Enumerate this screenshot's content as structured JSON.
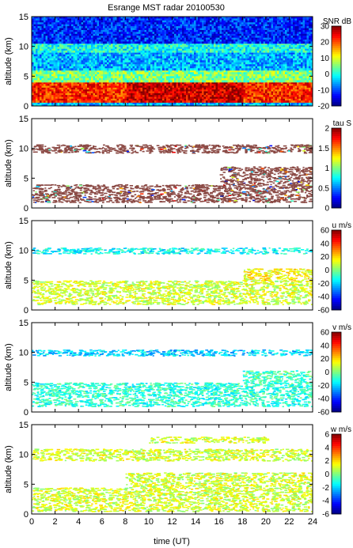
{
  "title": "Esrange MST radar 20100530",
  "xlabel": "time (UT)",
  "x_ticks": [
    0,
    2,
    4,
    6,
    8,
    10,
    12,
    14,
    16,
    18,
    20,
    22,
    24
  ],
  "xlim": [
    0,
    24
  ],
  "colors": {
    "background_missing": "#ffffff",
    "colormap": [
      "#00007f",
      "#0000ff",
      "#007fff",
      "#00ffff",
      "#7fff7f",
      "#ffff00",
      "#ff7f00",
      "#ff0000",
      "#7f0000"
    ]
  },
  "chart_data": [
    {
      "type": "heatmap",
      "name": "snr",
      "ylabel": "altitude (km)",
      "ylim": [
        0,
        15
      ],
      "y_ticks": [
        0,
        5,
        10,
        15
      ],
      "colorbar": {
        "label": "SNR dB",
        "range": [
          -20,
          30
        ],
        "ticks": [
          30,
          20,
          10,
          0,
          -10,
          -20
        ]
      },
      "layers": [
        {
          "alt_km": [
            0.0,
            0.6
          ],
          "value_db": -5
        },
        {
          "alt_km": [
            0.6,
            4.0
          ],
          "value_db": 22
        },
        {
          "alt_km": [
            4.0,
            6.0
          ],
          "value_db": 5
        },
        {
          "alt_km": [
            6.0,
            9.0
          ],
          "value_db": -5
        },
        {
          "alt_km": [
            9.0,
            10.5
          ],
          "value_db": 0
        },
        {
          "alt_km": [
            10.5,
            15.0
          ],
          "value_db": -12
        }
      ]
    },
    {
      "type": "heatmap",
      "name": "tau",
      "ylabel": "altitude (km)",
      "ylim": [
        0,
        15
      ],
      "y_ticks": [
        0,
        5,
        10,
        15
      ],
      "colorbar": {
        "label": "tau S",
        "range": [
          0,
          2
        ],
        "ticks": [
          2,
          1.5,
          1,
          0.5,
          0
        ]
      },
      "echo_bands": [
        {
          "alt_km": [
            1.0,
            4.0
          ],
          "value": 2.0,
          "time_ut": [
            0,
            24
          ]
        },
        {
          "alt_km": [
            4.0,
            7.0
          ],
          "value": 2.0,
          "time_ut": [
            16,
            24
          ]
        },
        {
          "alt_km": [
            9.3,
            10.7
          ],
          "value": 2.0,
          "time_ut": [
            0,
            24
          ]
        }
      ]
    },
    {
      "type": "heatmap",
      "name": "u",
      "ylabel": "altitude (km)",
      "ylim": [
        0,
        15
      ],
      "y_ticks": [
        0,
        5,
        10,
        15
      ],
      "colorbar": {
        "label": "u m/s",
        "range": [
          -60,
          60
        ],
        "ticks": [
          60,
          40,
          20,
          0,
          -20,
          -40,
          -60
        ]
      },
      "echo_bands": [
        {
          "alt_km": [
            1.0,
            5.0
          ],
          "value": 10,
          "time_ut": [
            0,
            24
          ]
        },
        {
          "alt_km": [
            5.0,
            7.0
          ],
          "value": 15,
          "time_ut": [
            18,
            24
          ]
        },
        {
          "alt_km": [
            9.5,
            10.5
          ],
          "value": -15,
          "time_ut": [
            0,
            24
          ]
        }
      ]
    },
    {
      "type": "heatmap",
      "name": "v",
      "ylabel": "altitude (km)",
      "ylim": [
        0,
        15
      ],
      "y_ticks": [
        0,
        5,
        10,
        15
      ],
      "colorbar": {
        "label": "v m/s",
        "range": [
          -60,
          60
        ],
        "ticks": [
          60,
          40,
          20,
          0,
          -20,
          -40,
          -60
        ]
      },
      "echo_bands": [
        {
          "alt_km": [
            1.0,
            5.0
          ],
          "value": -10,
          "time_ut": [
            0,
            24
          ]
        },
        {
          "alt_km": [
            5.0,
            7.0
          ],
          "value": -8,
          "time_ut": [
            18,
            24
          ]
        },
        {
          "alt_km": [
            9.5,
            10.5
          ],
          "value": -20,
          "time_ut": [
            0,
            24
          ]
        }
      ]
    },
    {
      "type": "heatmap",
      "name": "w",
      "ylabel": "altitude (km)",
      "ylim": [
        0,
        15
      ],
      "y_ticks": [
        0,
        5,
        10,
        15
      ],
      "colorbar": {
        "label": "w m/s",
        "range": [
          -6,
          6
        ],
        "ticks": [
          6,
          4,
          2,
          0,
          -2,
          -4,
          -6
        ]
      },
      "echo_bands": [
        {
          "alt_km": [
            0.5,
            4.5
          ],
          "value": 1,
          "time_ut": [
            0,
            24
          ]
        },
        {
          "alt_km": [
            4.5,
            7.0
          ],
          "value": 1,
          "time_ut": [
            8,
            24
          ]
        },
        {
          "alt_km": [
            9.0,
            11.0
          ],
          "value": 1,
          "time_ut": [
            0,
            24
          ]
        },
        {
          "alt_km": [
            12.0,
            13.0
          ],
          "value": 1,
          "time_ut": [
            10,
            20
          ]
        }
      ]
    }
  ]
}
